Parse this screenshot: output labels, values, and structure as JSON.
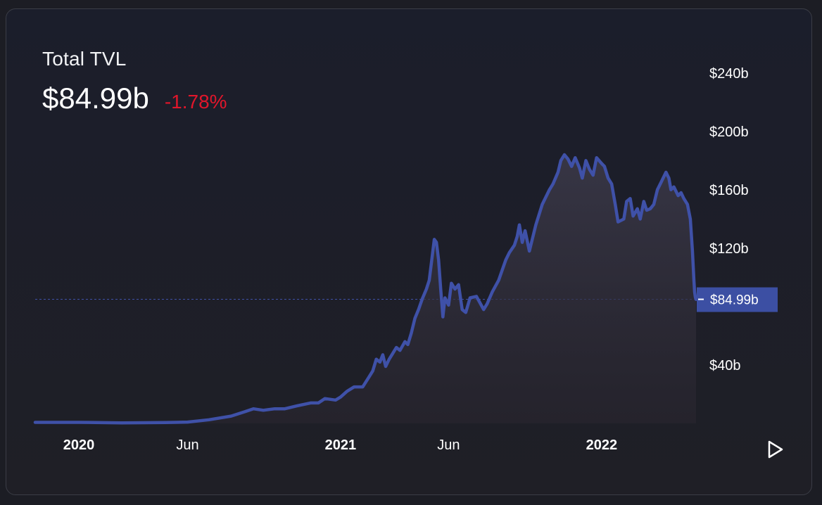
{
  "header": {
    "title": "Total TVL",
    "value": "$84.99b",
    "change": "-1.78%",
    "change_color": "#e0162b"
  },
  "colors": {
    "line": "#3f51a8",
    "text": "#ffffff",
    "marker_bg": "#3c4fa3"
  },
  "controls": {
    "play_icon": "play-icon"
  },
  "chart_data": {
    "type": "area",
    "title": "",
    "xlabel": "",
    "ylabel": "",
    "ylim": [
      0,
      250
    ],
    "x_range": [
      "2019-11-01",
      "2022-05-13"
    ],
    "x_ticks": [
      {
        "date": "2020-01-01",
        "label": "2020",
        "bold": true
      },
      {
        "date": "2020-06-01",
        "label": "Jun",
        "bold": false
      },
      {
        "date": "2021-01-01",
        "label": "2021",
        "bold": true
      },
      {
        "date": "2021-06-01",
        "label": "Jun",
        "bold": false
      },
      {
        "date": "2022-01-01",
        "label": "2022",
        "bold": true
      }
    ],
    "y_ticks": [
      {
        "value": 40,
        "label": "$40b"
      },
      {
        "value": 120,
        "label": "$120b"
      },
      {
        "value": 160,
        "label": "$160b"
      },
      {
        "value": 200,
        "label": "$200b"
      },
      {
        "value": 240,
        "label": "$240b"
      }
    ],
    "current": {
      "value": 84.99,
      "label": "$84.99b"
    },
    "series": [
      {
        "points": [
          [
            "2019-11-01",
            0.7
          ],
          [
            "2020-01-01",
            0.7
          ],
          [
            "2020-03-01",
            0.4
          ],
          [
            "2020-05-01",
            0.6
          ],
          [
            "2020-06-01",
            0.9
          ],
          [
            "2020-07-01",
            2.5
          ],
          [
            "2020-08-01",
            5
          ],
          [
            "2020-08-20",
            8
          ],
          [
            "2020-09-01",
            10
          ],
          [
            "2020-09-15",
            9
          ],
          [
            "2020-10-01",
            10
          ],
          [
            "2020-10-15",
            10
          ],
          [
            "2020-11-01",
            12
          ],
          [
            "2020-11-20",
            14
          ],
          [
            "2020-12-01",
            14
          ],
          [
            "2020-12-10",
            17
          ],
          [
            "2020-12-25",
            16
          ],
          [
            "2021-01-01",
            18
          ],
          [
            "2021-01-10",
            22
          ],
          [
            "2021-01-20",
            25
          ],
          [
            "2021-02-01",
            25
          ],
          [
            "2021-02-10",
            32
          ],
          [
            "2021-02-15",
            36
          ],
          [
            "2021-02-20",
            44
          ],
          [
            "2021-02-25",
            42
          ],
          [
            "2021-03-01",
            47
          ],
          [
            "2021-03-05",
            39
          ],
          [
            "2021-03-10",
            44
          ],
          [
            "2021-03-15",
            48
          ],
          [
            "2021-03-20",
            52
          ],
          [
            "2021-03-25",
            50
          ],
          [
            "2021-04-01",
            56
          ],
          [
            "2021-04-05",
            54
          ],
          [
            "2021-04-10",
            62
          ],
          [
            "2021-04-15",
            72
          ],
          [
            "2021-04-20",
            78
          ],
          [
            "2021-04-25",
            85
          ],
          [
            "2021-05-01",
            92
          ],
          [
            "2021-05-05",
            98
          ],
          [
            "2021-05-08",
            110
          ],
          [
            "2021-05-12",
            126
          ],
          [
            "2021-05-15",
            124
          ],
          [
            "2021-05-18",
            112
          ],
          [
            "2021-05-21",
            92
          ],
          [
            "2021-05-24",
            73
          ],
          [
            "2021-05-27",
            86
          ],
          [
            "2021-06-01",
            81
          ],
          [
            "2021-06-05",
            96
          ],
          [
            "2021-06-10",
            92
          ],
          [
            "2021-06-15",
            95
          ],
          [
            "2021-06-20",
            78
          ],
          [
            "2021-06-25",
            76
          ],
          [
            "2021-07-01",
            86
          ],
          [
            "2021-07-10",
            87
          ],
          [
            "2021-07-20",
            78
          ],
          [
            "2021-07-25",
            82
          ],
          [
            "2021-08-01",
            90
          ],
          [
            "2021-08-10",
            98
          ],
          [
            "2021-08-20",
            112
          ],
          [
            "2021-08-25",
            117
          ],
          [
            "2021-09-01",
            122
          ],
          [
            "2021-09-05",
            128
          ],
          [
            "2021-09-08",
            136
          ],
          [
            "2021-09-12",
            124
          ],
          [
            "2021-09-16",
            132
          ],
          [
            "2021-09-22",
            118
          ],
          [
            "2021-10-01",
            136
          ],
          [
            "2021-10-10",
            150
          ],
          [
            "2021-10-20",
            160
          ],
          [
            "2021-10-25",
            164
          ],
          [
            "2021-11-01",
            172
          ],
          [
            "2021-11-05",
            180
          ],
          [
            "2021-11-10",
            184
          ],
          [
            "2021-11-15",
            181
          ],
          [
            "2021-11-20",
            176
          ],
          [
            "2021-11-25",
            182
          ],
          [
            "2021-12-01",
            175
          ],
          [
            "2021-12-05",
            168
          ],
          [
            "2021-12-10",
            180
          ],
          [
            "2021-12-15",
            174
          ],
          [
            "2021-12-20",
            170
          ],
          [
            "2021-12-25",
            182
          ],
          [
            "2022-01-01",
            178
          ],
          [
            "2022-01-05",
            176
          ],
          [
            "2022-01-10",
            168
          ],
          [
            "2022-01-15",
            164
          ],
          [
            "2022-01-20",
            150
          ],
          [
            "2022-01-24",
            138
          ],
          [
            "2022-02-01",
            140
          ],
          [
            "2022-02-05",
            152
          ],
          [
            "2022-02-10",
            154
          ],
          [
            "2022-02-14",
            142
          ],
          [
            "2022-02-20",
            147
          ],
          [
            "2022-02-24",
            140
          ],
          [
            "2022-03-01",
            152
          ],
          [
            "2022-03-05",
            146
          ],
          [
            "2022-03-10",
            147
          ],
          [
            "2022-03-15",
            150
          ],
          [
            "2022-03-20",
            160
          ],
          [
            "2022-03-25",
            165
          ],
          [
            "2022-04-01",
            172
          ],
          [
            "2022-04-05",
            168
          ],
          [
            "2022-04-08",
            160
          ],
          [
            "2022-04-12",
            162
          ],
          [
            "2022-04-18",
            156
          ],
          [
            "2022-04-22",
            158
          ],
          [
            "2022-04-26",
            154
          ],
          [
            "2022-05-01",
            150
          ],
          [
            "2022-05-05",
            140
          ],
          [
            "2022-05-08",
            118
          ],
          [
            "2022-05-10",
            98
          ],
          [
            "2022-05-11",
            90
          ],
          [
            "2022-05-12",
            86.5
          ],
          [
            "2022-05-13",
            84.99
          ]
        ]
      }
    ]
  }
}
